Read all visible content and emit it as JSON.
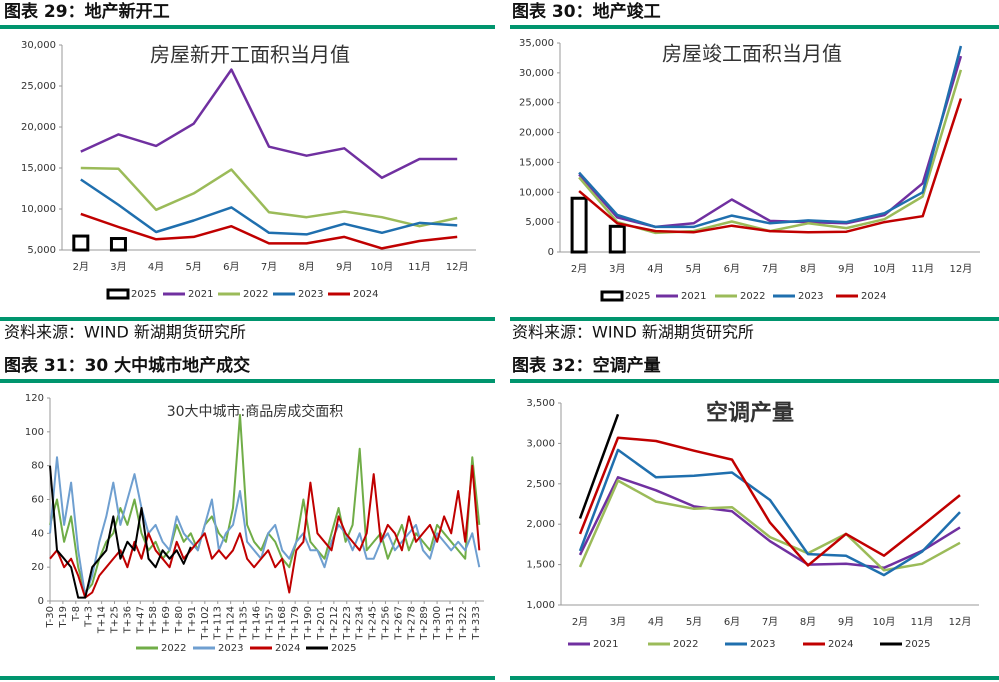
{
  "headings": [
    "图表 29：地产新开工",
    "图表 30：地产竣工",
    "图表 31：30 大中城市地产成交",
    "图表 32：空调产量"
  ],
  "sources": [
    "资料来源：WIND 新湖期货研究所",
    "资料来源：WIND 新湖期货研究所"
  ],
  "chart_data": [
    {
      "type": "line",
      "title": "房屋新开工面积当月值",
      "categories": [
        "2月",
        "3月",
        "4月",
        "5月",
        "6月",
        "7月",
        "8月",
        "9月",
        "10月",
        "11月",
        "12月"
      ],
      "ylim": [
        5000,
        30000
      ],
      "yticks": [
        {
          "value": 5000,
          "label": "5,000"
        },
        {
          "value": 10000,
          "label": "10,000"
        },
        {
          "value": 15000,
          "label": "15,000"
        },
        {
          "value": 20000,
          "label": "20,000"
        },
        {
          "value": 25000,
          "label": "25,000"
        },
        {
          "value": 30000,
          "label": "30,000"
        }
      ],
      "series": [
        {
          "name": "2025",
          "kind": "bar",
          "color": "#000000",
          "values": [
            6700,
            6400,
            null,
            null,
            null,
            null,
            null,
            null,
            null,
            null,
            null
          ]
        },
        {
          "name": "2021",
          "color": "#7030a0",
          "values": [
            17000,
            19100,
            17700,
            20400,
            27000,
            17600,
            16500,
            17400,
            13800,
            16100,
            16100
          ]
        },
        {
          "name": "2022",
          "color": "#9bbb59",
          "values": [
            15000,
            14900,
            9900,
            11900,
            14800,
            9600,
            9000,
            9700,
            9000,
            7900,
            8900
          ]
        },
        {
          "name": "2023",
          "color": "#1f6fae",
          "values": [
            13600,
            10500,
            7200,
            8600,
            10200,
            7100,
            6900,
            8200,
            7100,
            8300,
            8000
          ]
        },
        {
          "name": "2024",
          "color": "#c00000",
          "values": [
            9400,
            7800,
            6300,
            6600,
            7900,
            5800,
            5800,
            6600,
            5200,
            6100,
            6600
          ]
        }
      ]
    },
    {
      "type": "line",
      "title": "房屋竣工面积当月值",
      "categories": [
        "2月",
        "3月",
        "4月",
        "5月",
        "6月",
        "7月",
        "8月",
        "9月",
        "10月",
        "11月",
        "12月"
      ],
      "ylim": [
        0,
        35000
      ],
      "yticks": [
        0,
        {
          "value": 5000,
          "label": "5,000"
        },
        {
          "value": 10000,
          "label": "10,000"
        },
        {
          "value": 15000,
          "label": "15,000"
        },
        {
          "value": 20000,
          "label": "20,000"
        },
        {
          "value": 25000,
          "label": "25,000"
        },
        {
          "value": 30000,
          "label": "30,000"
        },
        {
          "value": 35000,
          "label": "35,000"
        }
      ],
      "series": [
        {
          "name": "2025",
          "kind": "bar",
          "color": "#000000",
          "values": [
            9000,
            4300,
            null,
            null,
            null,
            null,
            null,
            null,
            null,
            null,
            null
          ]
        },
        {
          "name": "2021",
          "color": "#7030a0",
          "values": [
            13000,
            5800,
            4200,
            4800,
            8800,
            5200,
            5000,
            4800,
            6200,
            11500,
            32800
          ]
        },
        {
          "name": "2022",
          "color": "#9bbb59",
          "values": [
            12500,
            5000,
            3200,
            3500,
            5100,
            3500,
            4800,
            4000,
            5500,
            9300,
            30500
          ]
        },
        {
          "name": "2023",
          "color": "#1f6fae",
          "values": [
            13300,
            6200,
            4200,
            4200,
            6100,
            4800,
            5300,
            5000,
            6500,
            10000,
            34500
          ]
        },
        {
          "name": "2024",
          "color": "#c00000",
          "values": [
            10200,
            4800,
            3500,
            3300,
            4400,
            3500,
            3300,
            3400,
            5000,
            6000,
            25700
          ]
        }
      ]
    },
    {
      "type": "line",
      "title": "30大中城市:商品房成交面积",
      "x": [
        -30,
        -24,
        -18,
        -12,
        -6,
        0,
        6,
        12,
        18,
        24,
        30,
        36,
        42,
        48,
        54,
        60,
        66,
        72,
        78,
        84,
        90,
        96,
        102,
        108,
        114,
        120,
        126,
        132,
        138,
        144,
        150,
        156,
        162,
        168,
        174,
        180,
        186,
        192,
        198,
        204,
        210,
        216,
        222,
        228,
        234,
        240,
        246,
        252,
        258,
        264,
        270,
        276,
        282,
        288,
        294,
        300,
        306,
        312,
        318,
        324,
        330,
        336
      ],
      "xlim": [
        -30,
        340
      ],
      "xticks": [
        {
          "value": -30,
          "label": "T-30"
        },
        {
          "value": -19,
          "label": "T-19"
        },
        {
          "value": -8,
          "label": "T-8"
        },
        {
          "value": 3,
          "label": "T+3"
        },
        {
          "value": 14,
          "label": "T+14"
        },
        {
          "value": 25,
          "label": "T+25"
        },
        {
          "value": 36,
          "label": "T+36"
        },
        {
          "value": 47,
          "label": "T+47"
        },
        {
          "value": 58,
          "label": "T+58"
        },
        {
          "value": 69,
          "label": "T+69"
        },
        {
          "value": 80,
          "label": "T+80"
        },
        {
          "value": 91,
          "label": "T+91"
        },
        {
          "value": 102,
          "label": "T+102"
        },
        {
          "value": 113,
          "label": "T+113"
        },
        {
          "value": 124,
          "label": "T+124"
        },
        {
          "value": 135,
          "label": "T+135"
        },
        {
          "value": 146,
          "label": "T+146"
        },
        {
          "value": 157,
          "label": "T+157"
        },
        {
          "value": 168,
          "label": "T+168"
        },
        {
          "value": 179,
          "label": "T+179"
        },
        {
          "value": 190,
          "label": "T+190"
        },
        {
          "value": 201,
          "label": "T+201"
        },
        {
          "value": 212,
          "label": "T+212"
        },
        {
          "value": 223,
          "label": "T+223"
        },
        {
          "value": 234,
          "label": "T+234"
        },
        {
          "value": 245,
          "label": "T+245"
        },
        {
          "value": 256,
          "label": "T+256"
        },
        {
          "value": 267,
          "label": "T+267"
        },
        {
          "value": 278,
          "label": "T+278"
        },
        {
          "value": 289,
          "label": "T+289"
        },
        {
          "value": 300,
          "label": "T+300"
        },
        {
          "value": 311,
          "label": "T+311"
        },
        {
          "value": 322,
          "label": "T+322"
        },
        {
          "value": 333,
          "label": "T+333"
        }
      ],
      "ylim": [
        0,
        120
      ],
      "yticks": [
        0,
        20,
        40,
        60,
        80,
        100,
        120
      ],
      "series": [
        {
          "name": "2022",
          "color": "#70ad47",
          "values": [
            45,
            60,
            35,
            50,
            20,
            5,
            10,
            25,
            35,
            40,
            55,
            45,
            60,
            40,
            30,
            35,
            25,
            30,
            45,
            35,
            40,
            30,
            45,
            50,
            40,
            35,
            55,
            110,
            45,
            35,
            30,
            40,
            35,
            25,
            20,
            35,
            60,
            35,
            30,
            25,
            40,
            55,
            35,
            45,
            90,
            30,
            35,
            40,
            25,
            35,
            45,
            30,
            40,
            35,
            30,
            45,
            40,
            35,
            30,
            25,
            85,
            45
          ]
        },
        {
          "name": "2023",
          "color": "#6f9fd0",
          "values": [
            40,
            85,
            45,
            70,
            30,
            3,
            15,
            35,
            50,
            70,
            45,
            60,
            75,
            55,
            40,
            45,
            35,
            30,
            50,
            40,
            35,
            30,
            45,
            60,
            30,
            40,
            45,
            65,
            35,
            30,
            25,
            40,
            45,
            30,
            25,
            35,
            40,
            30,
            30,
            20,
            35,
            45,
            40,
            30,
            40,
            25,
            25,
            35,
            40,
            30,
            35,
            40,
            45,
            30,
            25,
            40,
            35,
            30,
            35,
            30,
            40,
            20
          ]
        },
        {
          "name": "2024",
          "color": "#c00000",
          "values": [
            25,
            30,
            20,
            25,
            15,
            2,
            5,
            15,
            20,
            25,
            30,
            20,
            35,
            25,
            40,
            30,
            25,
            20,
            35,
            25,
            30,
            35,
            40,
            25,
            30,
            25,
            30,
            40,
            25,
            20,
            25,
            30,
            20,
            25,
            5,
            30,
            35,
            70,
            40,
            35,
            30,
            50,
            40,
            35,
            30,
            40,
            75,
            35,
            45,
            40,
            30,
            50,
            35,
            40,
            45,
            35,
            50,
            40,
            65,
            35,
            80,
            30
          ]
        },
        {
          "name": "2025",
          "color": "#000000",
          "values": [
            80,
            30,
            25,
            20,
            2,
            2,
            20,
            25,
            30,
            50,
            25,
            35,
            30,
            55,
            25,
            20,
            30,
            25,
            30,
            22,
            32,
            null,
            null,
            null,
            null,
            null,
            null,
            null,
            null,
            null,
            null,
            null,
            null,
            null,
            null,
            null,
            null,
            null,
            null,
            null,
            null,
            null,
            null,
            null,
            null,
            null,
            null,
            null,
            null,
            null,
            null,
            null,
            null,
            null,
            null,
            null,
            null,
            null,
            null,
            null,
            null,
            null
          ]
        }
      ]
    },
    {
      "type": "line",
      "title": "空调产量",
      "categories": [
        "2月",
        "3月",
        "4月",
        "5月",
        "6月",
        "7月",
        "8月",
        "9月",
        "10月",
        "11月",
        "12月"
      ],
      "ylim": [
        1000,
        3500
      ],
      "yticks": [
        {
          "value": 1000,
          "label": "1,000"
        },
        {
          "value": 1500,
          "label": "1,500"
        },
        {
          "value": 2000,
          "label": "2,000"
        },
        {
          "value": 2500,
          "label": "2,500"
        },
        {
          "value": 3000,
          "label": "3,000"
        },
        {
          "value": 3500,
          "label": "3,500"
        }
      ],
      "series": [
        {
          "name": "2021",
          "color": "#7030a0",
          "values": [
            1620,
            2580,
            2420,
            2220,
            2160,
            1790,
            1500,
            1510,
            1460,
            1670,
            1960
          ]
        },
        {
          "name": "2022",
          "color": "#9bbb59",
          "values": [
            1470,
            2540,
            2280,
            2190,
            2210,
            1840,
            1640,
            1880,
            1430,
            1510,
            1770
          ]
        },
        {
          "name": "2023",
          "color": "#1f6fae",
          "values": [
            1670,
            2920,
            2580,
            2600,
            2640,
            2300,
            1630,
            1610,
            1370,
            1660,
            2150
          ]
        },
        {
          "name": "2024",
          "color": "#c00000",
          "values": [
            1880,
            3070,
            3030,
            2910,
            2800,
            2020,
            1490,
            1880,
            1610,
            1980,
            2360
          ]
        },
        {
          "name": "2025",
          "color": "#000000",
          "values": [
            2070,
            3360,
            null,
            null,
            null,
            null,
            null,
            null,
            null,
            null,
            null
          ]
        }
      ]
    }
  ]
}
